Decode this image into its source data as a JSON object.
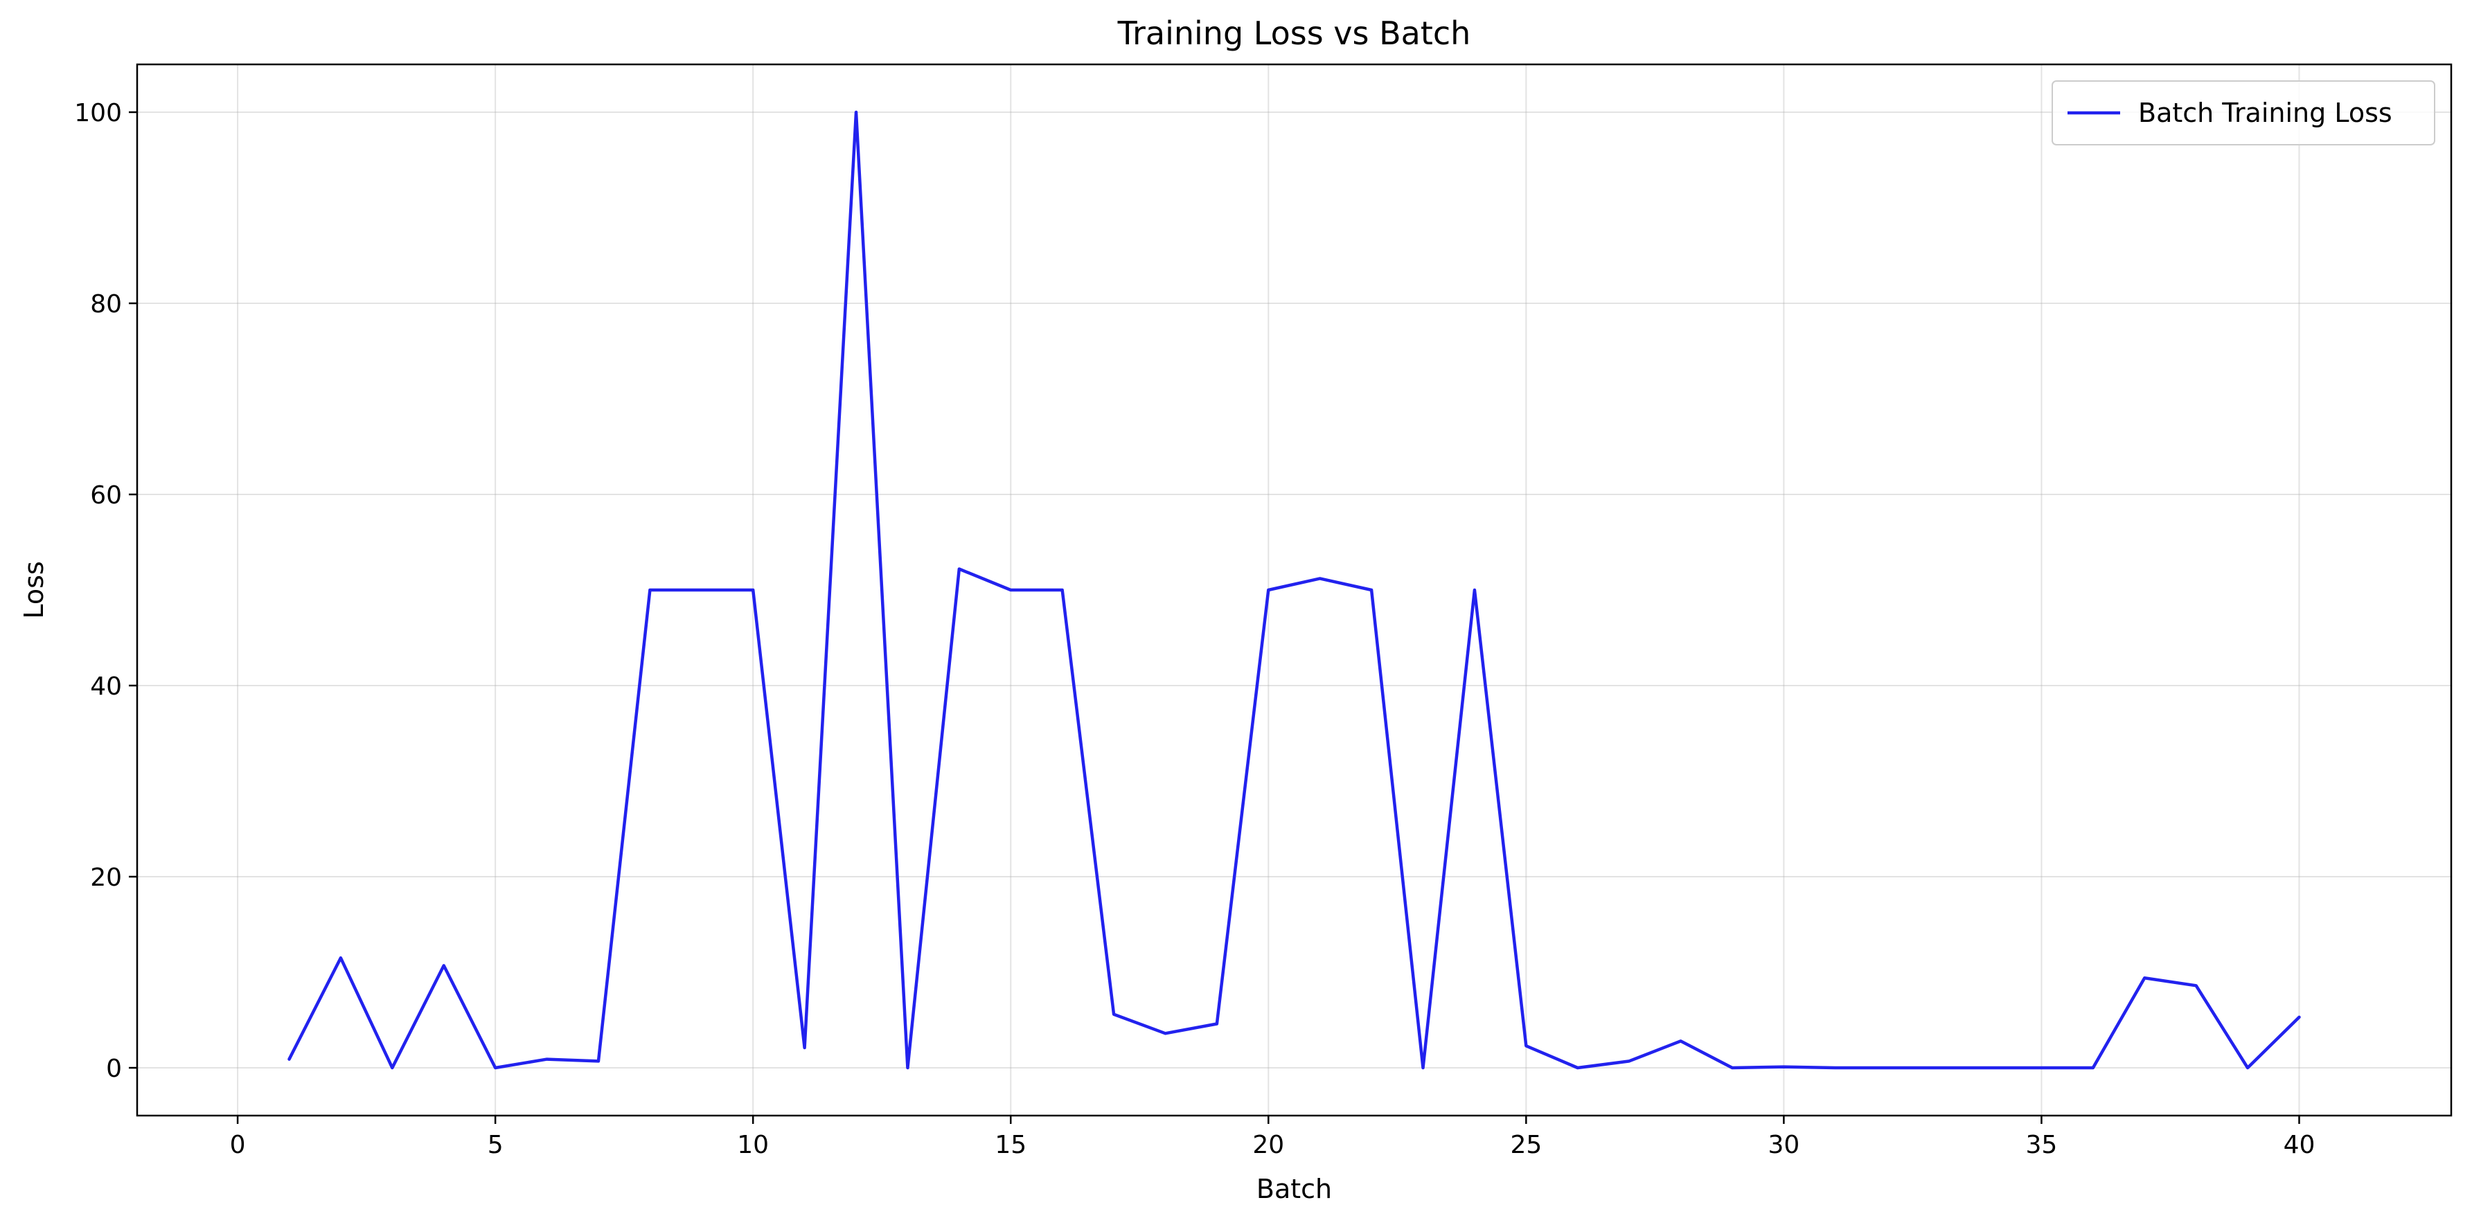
{
  "chart_data": {
    "type": "line",
    "title": "Training Loss vs Batch",
    "xlabel": "Batch",
    "ylabel": "Loss",
    "xlim": [
      -1.95,
      42.95
    ],
    "ylim": [
      -5,
      105
    ],
    "xticks": [
      0,
      5,
      10,
      15,
      20,
      25,
      30,
      35,
      40
    ],
    "yticks": [
      0,
      20,
      40,
      60,
      80,
      100
    ],
    "grid": true,
    "legend_position": "top-right",
    "series": [
      {
        "name": "Batch Training Loss",
        "color": "#2222ee",
        "x": [
          1,
          2,
          3,
          4,
          5,
          6,
          7,
          8,
          9,
          10,
          11,
          12,
          13,
          14,
          15,
          16,
          17,
          18,
          19,
          20,
          21,
          22,
          23,
          24,
          25,
          26,
          27,
          28,
          29,
          30,
          31,
          32,
          33,
          34,
          35,
          36,
          37,
          38,
          39,
          40
        ],
        "values": [
          0.9,
          11.5,
          0.0,
          10.7,
          0.0,
          0.9,
          0.7,
          50.0,
          50.0,
          50.0,
          2.1,
          100.0,
          0.0,
          52.2,
          50.0,
          50.0,
          5.6,
          3.6,
          4.6,
          50.0,
          51.2,
          50.0,
          0.0,
          50.0,
          2.3,
          0.0,
          0.7,
          2.8,
          0.0,
          0.1,
          0.0,
          0.0,
          0.0,
          0.0,
          0.0,
          0.0,
          9.4,
          8.6,
          0.0,
          5.3
        ]
      }
    ]
  }
}
